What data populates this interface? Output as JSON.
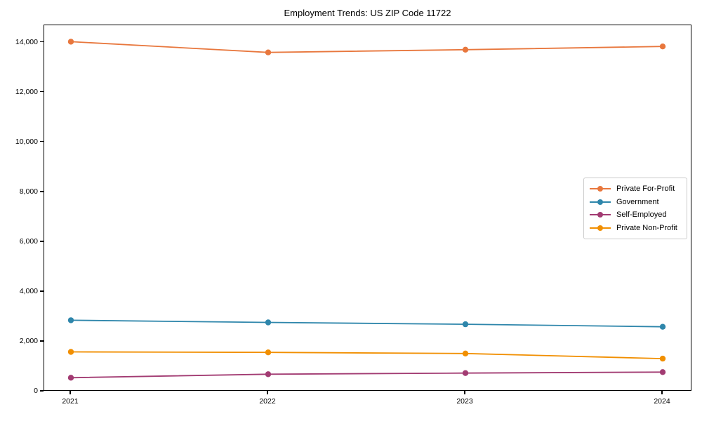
{
  "page": {
    "background": "#ffffff"
  },
  "chart_data": {
    "type": "line",
    "title": "Employment Trends: US ZIP Code 11722",
    "categories": [
      "2021",
      "2022",
      "2023",
      "2024"
    ],
    "series": [
      {
        "name": "Private For-Profit",
        "color": "#E8773D",
        "marker": "circle",
        "values": [
          14040,
          13610,
          13720,
          13850
        ]
      },
      {
        "name": "Government",
        "color": "#2E86AB",
        "marker": "circle",
        "values": [
          2860,
          2775,
          2700,
          2600
        ]
      },
      {
        "name": "Self-Employed",
        "color": "#A23B72",
        "marker": "circle",
        "values": [
          555,
          695,
          740,
          780
        ]
      },
      {
        "name": "Private Non-Profit",
        "color": "#F18F01",
        "marker": "circle",
        "values": [
          1590,
          1570,
          1525,
          1320
        ]
      }
    ],
    "xlabel": "",
    "ylabel": "",
    "ylim": [
      0,
      14700
    ],
    "x_tick_labels": [
      "2021",
      "2022",
      "2023",
      "2024"
    ],
    "y_tick_values": [
      0,
      2000,
      4000,
      6000,
      8000,
      10000,
      12000,
      14000
    ],
    "y_tick_labels": [
      "0",
      "2,000",
      "4,000",
      "6,000",
      "8,000",
      "10,000",
      "12,000",
      "14,000"
    ],
    "grid": false,
    "legend": {
      "position": "right-middle",
      "entries": [
        "Private For-Profit",
        "Government",
        "Self-Employed",
        "Private Non-Profit"
      ]
    },
    "axes_color": "#000000",
    "plot_bg": "#ffffff"
  }
}
